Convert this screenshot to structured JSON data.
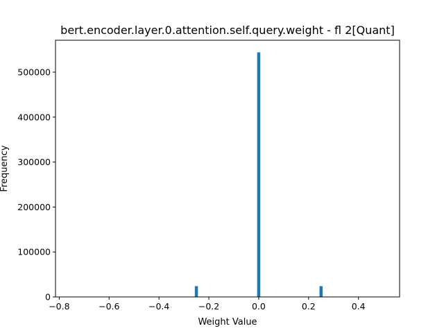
{
  "chart_data": {
    "type": "bar",
    "title": "bert.encoder.layer.0.attention.self.query.weight - fl 2[Quant]",
    "xlabel": "Weight Value",
    "ylabel": "Frequency",
    "xlim": [
      -0.815,
      0.565
    ],
    "ylim": [
      0,
      571000
    ],
    "xticks": [
      -0.8,
      -0.6,
      -0.4,
      -0.2,
      0.0,
      0.2,
      0.4
    ],
    "xtick_labels": [
      "−0.8",
      "−0.6",
      "−0.4",
      "−0.2",
      "0.0",
      "0.2",
      "0.4"
    ],
    "yticks": [
      0,
      100000,
      200000,
      300000,
      400000,
      500000
    ],
    "ytick_labels": [
      "0",
      "100000",
      "200000",
      "300000",
      "400000",
      "500000"
    ],
    "bin_width": 0.0125,
    "bars": [
      {
        "x": -0.25,
        "value": 24000
      },
      {
        "x": 0.0,
        "value": 544000
      },
      {
        "x": 0.25,
        "value": 24000
      }
    ],
    "bar_color": "#1f77b4",
    "grid": false
  }
}
